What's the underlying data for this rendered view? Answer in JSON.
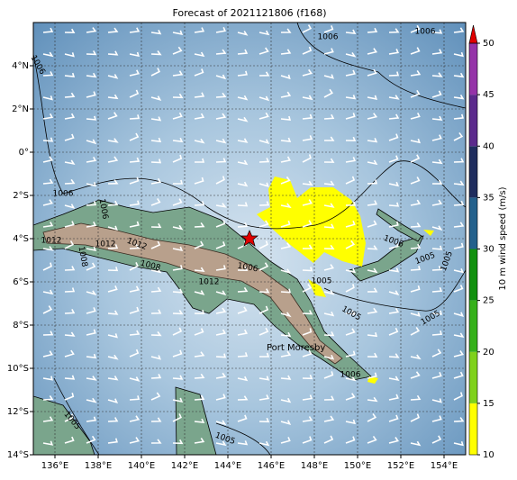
{
  "title": "Forecast of 2021121806 (f168)",
  "map": {
    "lon_ticks": [
      {
        "value": 136,
        "label": "136°E"
      },
      {
        "value": 138,
        "label": "138°E"
      },
      {
        "value": 140,
        "label": "140°E"
      },
      {
        "value": 142,
        "label": "142°E"
      },
      {
        "value": 144,
        "label": "144°E"
      },
      {
        "value": 146,
        "label": "146°E"
      },
      {
        "value": 148,
        "label": "148°E"
      },
      {
        "value": 150,
        "label": "150°E"
      },
      {
        "value": 152,
        "label": "152°E"
      },
      {
        "value": 154,
        "label": "154°E"
      }
    ],
    "lat_ticks": [
      {
        "value": 4,
        "label": "4°N"
      },
      {
        "value": 2,
        "label": "2°N"
      },
      {
        "value": 0,
        "label": "0°"
      },
      {
        "value": -2,
        "label": "2°S"
      },
      {
        "value": -4,
        "label": "4°S"
      },
      {
        "value": -6,
        "label": "6°S"
      },
      {
        "value": -8,
        "label": "8°S"
      },
      {
        "value": -10,
        "label": "10°S"
      },
      {
        "value": -12,
        "label": "12°S"
      },
      {
        "value": -14,
        "label": "14°S"
      }
    ],
    "lon_range": [
      135,
      155
    ],
    "lat_range": [
      -14,
      6
    ],
    "contour_labels": [
      1006,
      1006,
      1006,
      1006,
      1006,
      1012,
      1012,
      1012,
      1008,
      1012,
      1006,
      1008,
      1005,
      1006,
      1005,
      1005,
      1005,
      1005,
      1006,
      1005,
      1005
    ],
    "place_label": "Port Moresby"
  },
  "colorbar": {
    "label": "10 m wind speed (m/s)",
    "range": [
      10,
      50
    ],
    "ticks": [
      10,
      15,
      20,
      25,
      30,
      35,
      40,
      45,
      50
    ],
    "colors": [
      "#ffff00",
      "#7fd11b",
      "#35b01a",
      "#11900e",
      "#23608c",
      "#1f2d5e",
      "#5b2a8c",
      "#9533a8"
    ],
    "extend_color": "#e00000"
  }
}
